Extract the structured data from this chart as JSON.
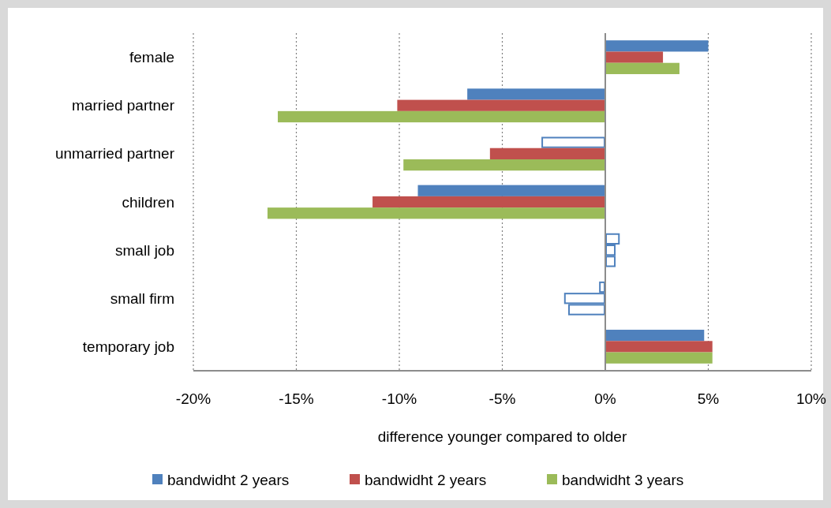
{
  "chart_data": {
    "type": "bar",
    "orientation": "horizontal",
    "xlabel": "difference younger compared to older",
    "categories": [
      "female",
      "married partner",
      "unmarried partner",
      "children",
      "small job",
      "small firm",
      "temporary job"
    ],
    "series": [
      {
        "name": "bandwidht 2 years",
        "color": "#4f81bd",
        "values": [
          0.05,
          -0.067,
          -0.031,
          -0.091,
          0.007,
          -0.003,
          0.048
        ],
        "colors": [
          "#4f81bd",
          "#4f81bd",
          "#ffffff",
          "#4f81bd",
          "#ffffff",
          "#ffffff",
          "#4f81bd"
        ]
      },
      {
        "name": "bandwidht 2 years",
        "color": "#c0504d",
        "values": [
          0.028,
          -0.101,
          -0.056,
          -0.113,
          0.005,
          -0.02,
          0.052
        ],
        "colors": [
          "#c0504d",
          "#c0504d",
          "#c0504d",
          "#c0504d",
          "#ffffff",
          "#ffffff",
          "#c0504d"
        ]
      },
      {
        "name": "bandwidht 3 years",
        "color": "#9bbb59",
        "values": [
          0.036,
          -0.159,
          -0.098,
          -0.164,
          0.005,
          -0.018,
          0.052
        ],
        "colors": [
          "#9bbb59",
          "#9bbb59",
          "#9bbb59",
          "#9bbb59",
          "#ffffff",
          "#ffffff",
          "#9bbb59"
        ]
      }
    ],
    "xlim": [
      -0.2,
      0.1
    ],
    "xticks": [
      {
        "value": -0.2,
        "label": "-20%"
      },
      {
        "value": -0.15,
        "label": "-15%"
      },
      {
        "value": -0.1,
        "label": "-10%"
      },
      {
        "value": -0.05,
        "label": "-5%"
      },
      {
        "value": 0,
        "label": "0%"
      },
      {
        "value": 0.05,
        "label": "5%"
      },
      {
        "value": 0.1,
        "label": "10%"
      }
    ],
    "grid": "x",
    "legend": "bottom"
  }
}
